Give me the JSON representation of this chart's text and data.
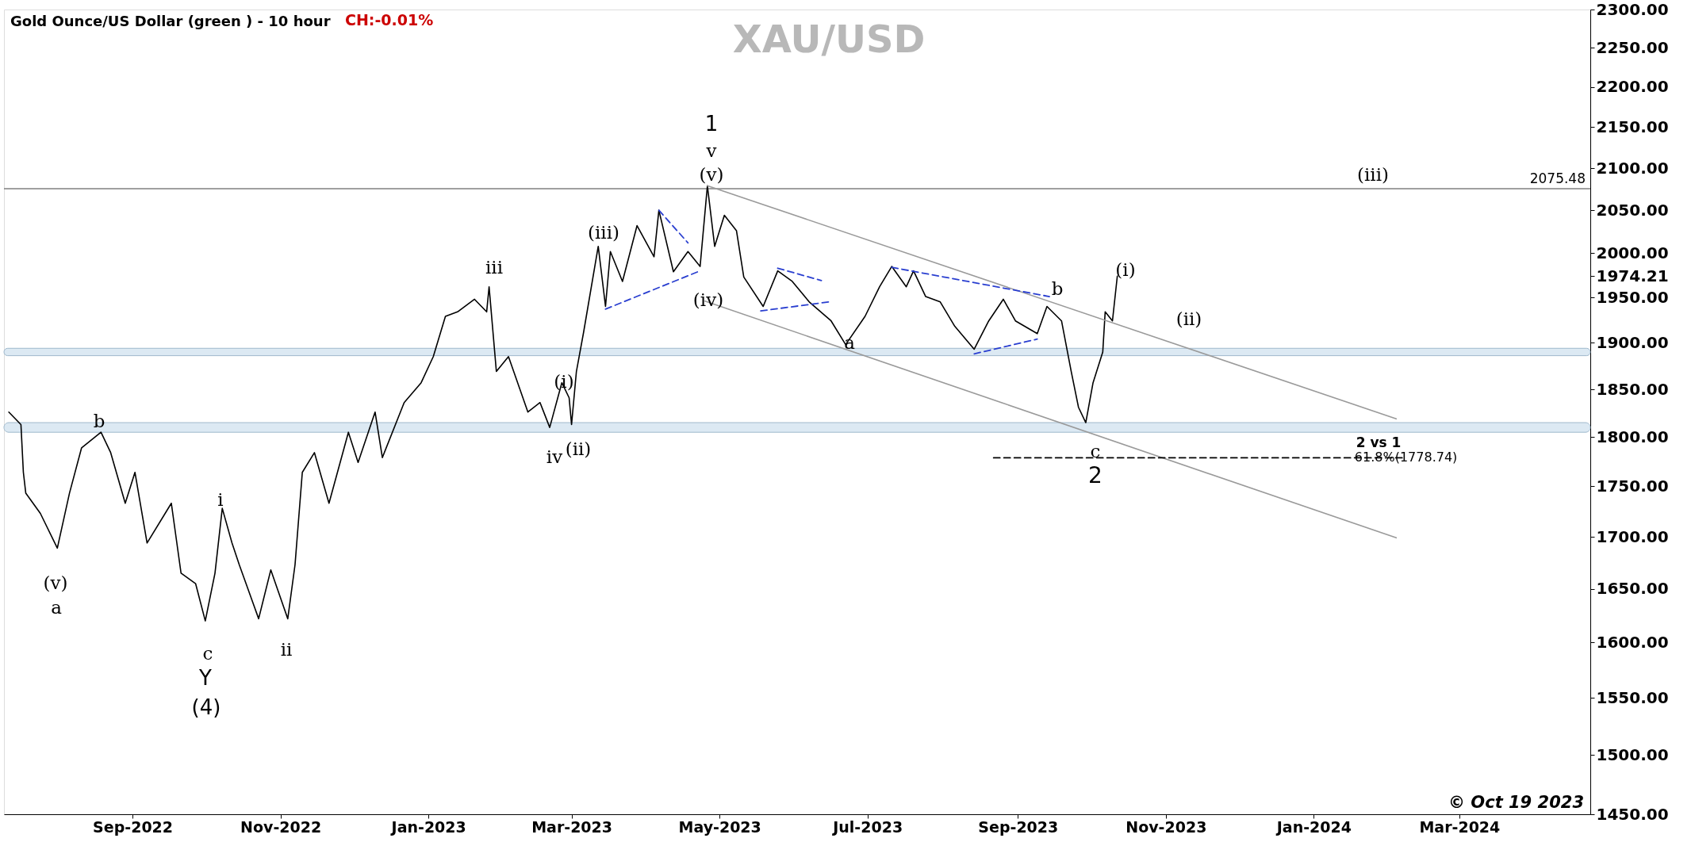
{
  "chart_data": {
    "type": "line",
    "title": "XAU/USD",
    "subtitle": "Gold Ounce/US Dollar (green ) - 10 hour",
    "xlim": [
      "2022-07-10",
      "2024-04-24"
    ],
    "xticks": [
      {
        "value": "2022-09",
        "label": "Sep-2022"
      },
      {
        "value": "2022-11",
        "label": "Nov-2022"
      },
      {
        "value": "2023-01",
        "label": "Jan-2023"
      },
      {
        "value": "2023-03",
        "label": "Mar-2023"
      },
      {
        "value": "2023-05",
        "label": "May-2023"
      },
      {
        "value": "2023-07",
        "label": "Jul-2023"
      },
      {
        "value": "2023-09",
        "label": "Sep-2023"
      },
      {
        "value": "2023-11",
        "label": "Nov-2023"
      },
      {
        "value": "2024-01",
        "label": "Jan-2024"
      },
      {
        "value": "2024-03",
        "label": "Mar-2024"
      }
    ],
    "ylim": [
      1450,
      2300
    ],
    "log": "y",
    "yticks": [
      {
        "value": 1450,
        "label": "1450.00"
      },
      {
        "value": 1500,
        "label": "1500.00"
      },
      {
        "value": 1550,
        "label": "1550.00"
      },
      {
        "value": 1600,
        "label": "1600.00"
      },
      {
        "value": 1650,
        "label": "1650.00"
      },
      {
        "value": 1700,
        "label": "1700.00"
      },
      {
        "value": 1750,
        "label": "1750.00"
      },
      {
        "value": 1800,
        "label": "1800.00"
      },
      {
        "value": 1850,
        "label": "1850.00"
      },
      {
        "value": 1900,
        "label": "1900.00"
      },
      {
        "value": 1950,
        "label": "1950.00"
      },
      {
        "value": 1974.21,
        "label": "1974.21"
      },
      {
        "value": 2000,
        "label": "2000.00"
      },
      {
        "value": 2050,
        "label": "2050.00"
      },
      {
        "value": 2100,
        "label": "2100.00"
      },
      {
        "value": 2150,
        "label": "2150.00"
      },
      {
        "value": 2200,
        "label": "2200.00"
      },
      {
        "value": 2250,
        "label": "2250.00"
      },
      {
        "value": 2300,
        "label": "2300.00"
      }
    ],
    "grid": false,
    "marker": "none",
    "series": [
      {
        "type": "line",
        "color": "#000000",
        "line_style": "solid",
        "x": [
          "2022-07-12",
          "2022-07-17",
          "2022-07-18",
          "2022-07-19",
          "2022-07-25",
          "2022-08-01",
          "2022-08-06",
          "2022-08-11",
          "2022-08-19",
          "2022-08-23",
          "2022-08-29",
          "2022-09-02",
          "2022-09-07",
          "2022-09-17",
          "2022-09-21",
          "2022-09-27",
          "2022-10-01",
          "2022-10-05",
          "2022-10-08",
          "2022-10-12",
          "2022-10-15",
          "2022-10-23",
          "2022-10-28",
          "2022-11-04",
          "2022-11-07",
          "2022-11-10",
          "2022-11-15",
          "2022-11-21",
          "2022-11-29",
          "2022-12-03",
          "2022-12-10",
          "2022-12-13",
          "2022-12-22",
          "2022-12-29",
          "2023-01-03",
          "2023-01-08",
          "2023-01-13",
          "2023-01-20",
          "2023-01-25",
          "2023-01-26",
          "2023-01-29",
          "2023-02-03",
          "2023-02-11",
          "2023-02-16",
          "2023-02-20",
          "2023-02-25",
          "2023-02-28",
          "2023-03-01",
          "2023-03-03",
          "2023-03-06",
          "2023-03-12",
          "2023-03-15",
          "2023-03-17",
          "2023-03-22",
          "2023-03-28",
          "2023-04-04",
          "2023-04-06",
          "2023-04-12",
          "2023-04-18",
          "2023-04-23",
          "2023-04-26",
          "2023-04-29",
          "2023-05-03",
          "2023-05-08",
          "2023-05-11",
          "2023-05-19",
          "2023-05-25",
          "2023-05-31",
          "2023-06-07",
          "2023-06-16",
          "2023-06-22",
          "2023-06-30",
          "2023-07-06",
          "2023-07-11",
          "2023-07-17",
          "2023-07-20",
          "2023-07-25",
          "2023-07-31",
          "2023-08-06",
          "2023-08-14",
          "2023-08-20",
          "2023-08-26",
          "2023-08-31",
          "2023-09-09",
          "2023-09-13",
          "2023-09-19",
          "2023-09-23",
          "2023-09-26",
          "2023-09-29",
          "2023-10-02",
          "2023-10-06",
          "2023-10-07",
          "2023-10-10",
          "2023-10-12"
        ],
        "values": [
          1826,
          1813,
          1764,
          1743,
          1723,
          1689,
          1743,
          1789,
          1805,
          1784,
          1733,
          1764,
          1694,
          1733,
          1665,
          1655,
          1620,
          1665,
          1728,
          1694,
          1673,
          1622,
          1668,
          1622,
          1673,
          1764,
          1784,
          1733,
          1805,
          1774,
          1826,
          1779,
          1836,
          1857,
          1885,
          1929,
          1934,
          1948,
          1934,
          1962,
          1869,
          1885,
          1826,
          1836,
          1810,
          1857,
          1841,
          1813,
          1869,
          1912,
          2008,
          1940,
          2002,
          1968,
          2032,
          1996,
          2050,
          1979,
          2002,
          1985,
          2079,
          2008,
          2044,
          2026,
          1973,
          1940,
          1980,
          1968,
          1945,
          1924,
          1898,
          1929,
          1962,
          1985,
          1962,
          1980,
          1951,
          1945,
          1918,
          1893,
          1924,
          1948,
          1924,
          1910,
          1940,
          1924,
          1869,
          1831,
          1815,
          1857,
          1890,
          1934,
          1924,
          1974
        ]
      },
      {
        "type": "line",
        "color": "#9a9a9a",
        "line_style": "solid",
        "x": [
          "2023-04-26",
          "2024-02-04"
        ],
        "values": [
          2079,
          1819
        ]
      },
      {
        "type": "line",
        "color": "#9a9a9a",
        "line_style": "solid",
        "x": [
          "2023-04-25",
          "2024-02-04"
        ],
        "values": [
          1946,
          1699
        ]
      },
      {
        "type": "line",
        "color": "#000000",
        "line_style": "dashed",
        "x": [
          "2023-08-22",
          "2024-02-07"
        ],
        "values": [
          1778.74,
          1778.74
        ]
      },
      {
        "type": "line",
        "color": "#2a3fd0",
        "line_style": "dashed",
        "x": [
          "2023-04-06",
          "2023-04-18"
        ],
        "values": [
          2050,
          2012
        ]
      },
      {
        "type": "line",
        "color": "#2a3fd0",
        "line_style": "dashed",
        "x": [
          "2023-03-15",
          "2023-04-23"
        ],
        "values": [
          1937,
          1980
        ]
      },
      {
        "type": "line",
        "color": "#2a3fd0",
        "line_style": "dashed",
        "x": [
          "2023-05-25",
          "2023-06-12"
        ],
        "values": [
          1983,
          1969
        ]
      },
      {
        "type": "line",
        "color": "#2a3fd0",
        "line_style": "dashed",
        "x": [
          "2023-05-18",
          "2023-06-15"
        ],
        "values": [
          1935,
          1945
        ]
      },
      {
        "type": "line",
        "color": "#2a3fd0",
        "line_style": "dashed",
        "x": [
          "2023-07-11",
          "2023-09-14"
        ],
        "values": [
          1984,
          1951
        ]
      },
      {
        "type": "line",
        "color": "#2a3fd0",
        "line_style": "dashed",
        "x": [
          "2023-08-14",
          "2023-09-09"
        ],
        "values": [
          1888,
          1904
        ]
      }
    ],
    "ref_lines": [
      {
        "axis": "y",
        "value": 2075.48,
        "label": "2075.48",
        "color": "#808080",
        "line_style": "solid"
      }
    ],
    "bands": [
      {
        "axis": "y",
        "from": 1805,
        "to": 1815,
        "color": "#dce9f3"
      },
      {
        "axis": "y",
        "from": 1886,
        "to": 1894,
        "color": "#dce9f3"
      }
    ],
    "annotations": [
      "CH:-0.01%",
      "© Oct 19 2023",
      "1",
      "v",
      "(v)",
      "(iii)",
      "iii",
      "(iv)",
      "(i)",
      "iv",
      "(ii)",
      "b",
      "(v)",
      "a",
      "i",
      "c",
      "Y",
      "(4)",
      "ii",
      "a",
      "b",
      "(i)",
      "(ii)",
      "c",
      "2",
      "(iii)",
      "2 vs 1",
      {
        "text": "61.8%(1778.74)",
        "x": "2024-02-08",
        "y": 1778.74
      }
    ]
  }
}
